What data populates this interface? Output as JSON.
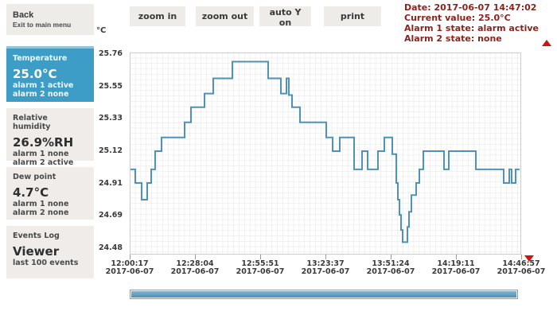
{
  "header": {
    "back": {
      "title": "Back",
      "subtitle": "Exit to main menu"
    },
    "toolbar": [
      {
        "label": "zoom in"
      },
      {
        "label": "zoom out"
      },
      {
        "label": "auto Y on"
      },
      {
        "label": "print"
      }
    ],
    "status": [
      "Date: 2017-06-07 14:47:02",
      "Current value: 25.0°C",
      "Alarm 1 state: alarm active",
      "Alarm 2 state: none"
    ]
  },
  "sidebar": [
    {
      "id": "temperature",
      "label": "Temperature",
      "value": "25.0°C",
      "lines": [
        "alarm 1 active",
        "alarm 2 none"
      ],
      "active": true
    },
    {
      "id": "humidity",
      "label": "Relative humidity",
      "value": "26.9%RH",
      "lines": [
        "alarm 1 none",
        "alarm 2 active"
      ],
      "active": false
    },
    {
      "id": "dewpoint",
      "label": "Dew point",
      "value": "4.7°C",
      "lines": [
        "alarm 1 none",
        "alarm 2 none"
      ],
      "active": false
    },
    {
      "id": "events-log",
      "label": "Events Log",
      "value": "Viewer",
      "lines": [
        "last 100 events"
      ],
      "active": false
    }
  ],
  "chart_data": {
    "type": "line",
    "unit_label": "°C",
    "ylabel": "°C",
    "ylim": [
      24.48,
      25.76
    ],
    "y_ticks": [
      "25.76",
      "25.55",
      "25.33",
      "25.12",
      "24.91",
      "24.69",
      "24.48"
    ],
    "x_ticks": [
      {
        "time": "12:00:17",
        "date": "2017-06-07"
      },
      {
        "time": "12:28:04",
        "date": "2017-06-07"
      },
      {
        "time": "12:55:51",
        "date": "2017-06-07"
      },
      {
        "time": "13:23:37",
        "date": "2017-06-07"
      },
      {
        "time": "14:19:11",
        "date": "2017-06-07"
      },
      {
        "time": "13:51:24",
        "date": "2017-06-07"
      },
      {
        "time": "14:46:57",
        "date": "2017-06-07"
      }
    ],
    "x_tick_order_note": "ticks left-to-right: 12:00:17, 12:28:04, 12:55:51, 13:23:37, 13:51:24, 14:19:11, 14:46:57",
    "grid": true,
    "series": [
      {
        "name": "Temperature",
        "color": "#4e92b6",
        "x_unit": "page_px",
        "end_x": 653,
        "points": [
          [
            164,
            25.0
          ],
          [
            170,
            24.91
          ],
          [
            178,
            24.8
          ],
          [
            185,
            24.91
          ],
          [
            190,
            25.0
          ],
          [
            195,
            25.12
          ],
          [
            203,
            25.21
          ],
          [
            232,
            25.31
          ],
          [
            240,
            25.41
          ],
          [
            257,
            25.5
          ],
          [
            268,
            25.6
          ],
          [
            292,
            25.71
          ],
          [
            337,
            25.6
          ],
          [
            353,
            25.5
          ],
          [
            360,
            25.6
          ],
          [
            363,
            25.49
          ],
          [
            367,
            25.41
          ],
          [
            377,
            25.31
          ],
          [
            410,
            25.21
          ],
          [
            418,
            25.12
          ],
          [
            427,
            25.21
          ],
          [
            445,
            25.0
          ],
          [
            455,
            25.12
          ],
          [
            462,
            25.0
          ],
          [
            475,
            25.12
          ],
          [
            483,
            25.21
          ],
          [
            493,
            25.1
          ],
          [
            498,
            24.91
          ],
          [
            500,
            24.8
          ],
          [
            502,
            24.7
          ],
          [
            504,
            24.6
          ],
          [
            506,
            24.52
          ],
          [
            512,
            24.62
          ],
          [
            514,
            24.72
          ],
          [
            517,
            24.83
          ],
          [
            523,
            24.91
          ],
          [
            527,
            25.0
          ],
          [
            532,
            25.12
          ],
          [
            558,
            25.0
          ],
          [
            564,
            25.12
          ],
          [
            598,
            25.0
          ],
          [
            633,
            24.91
          ],
          [
            640,
            25.0
          ],
          [
            643,
            24.91
          ],
          [
            648,
            25.0
          ],
          [
            653,
            25.0
          ]
        ]
      }
    ]
  },
  "colors": {
    "accent_blue": "#3e9dc6",
    "line_blue": "#4e92b6",
    "alarm_text_red": "#8b231d",
    "arrow_red": "#cc1410",
    "panel_bg": "#efece9",
    "button_bg": "#eeece9",
    "grid": "#e3e3e3"
  }
}
